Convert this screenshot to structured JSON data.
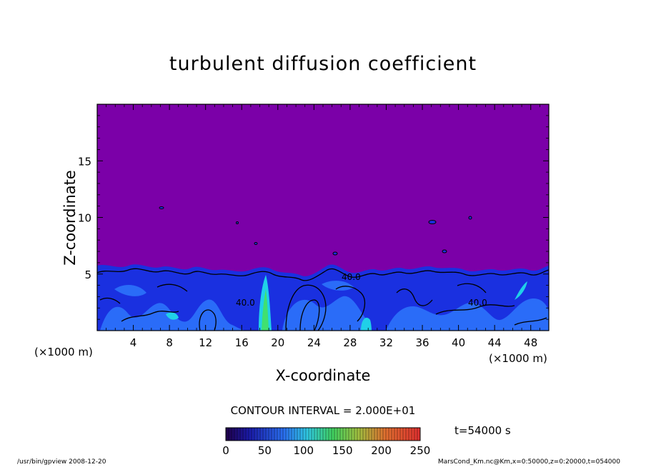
{
  "chart_data": {
    "type": "heatmap",
    "title": "turbulent diffusion coefficient",
    "xlabel": "X-coordinate",
    "ylabel": "Z-coordinate",
    "x_unit": "(×1000 m)",
    "y_unit": "(×1000 m)",
    "xlim": [
      0,
      50
    ],
    "ylim": [
      0,
      20
    ],
    "x_ticks": [
      4,
      8,
      12,
      16,
      20,
      24,
      28,
      32,
      36,
      40,
      44,
      48
    ],
    "y_ticks": [
      5,
      10,
      15
    ],
    "contour_interval_label": "CONTOUR INTERVAL = 2.000E+01",
    "contour_labels": [
      "40.0",
      "40.0",
      "40.0"
    ],
    "colorbar": {
      "min": 0,
      "max": 250,
      "ticks": [
        0,
        50,
        100,
        150,
        200,
        250
      ]
    },
    "background_value": 0,
    "turbulent_layer_top_km": 5.5,
    "time_label": "t=54000 s"
  },
  "footer": {
    "left": "/usr/bin/gpview   2008-12-20",
    "right": "MarsCond_Km.nc@Km,x=0:50000,z=0:20000,t=054000"
  },
  "colors": {
    "background_field": "#7b00a8",
    "layer_dark_blue": "#1a30e0",
    "layer_mid_blue": "#2a6cf8",
    "layer_cyan": "#20d0e8",
    "layer_green": "#40e070",
    "contour_line": "#000000"
  }
}
